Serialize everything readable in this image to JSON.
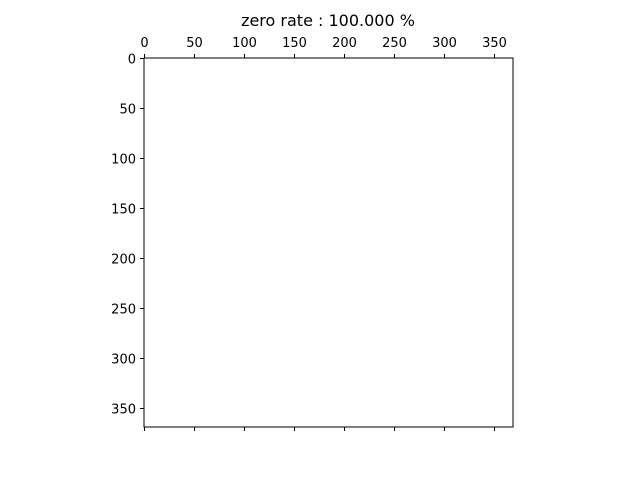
{
  "chart_data": {
    "type": "heatmap",
    "title": "zero rate : 100.000 %",
    "xlabel": "",
    "ylabel": "",
    "x_tick_labels": [
      "0",
      "50",
      "100",
      "150",
      "200",
      "250",
      "300",
      "350"
    ],
    "y_tick_labels": [
      "0",
      "50",
      "100",
      "150",
      "200",
      "250",
      "300",
      "350"
    ],
    "xlim": [
      0,
      369
    ],
    "ylim": [
      369,
      0
    ],
    "x_ticks_position": "top",
    "y_axis_inverted": true,
    "grid": false,
    "values": "all zero",
    "zero_rate_percent": 100.0,
    "colors": {
      "background": "#ffffff",
      "axes": "#000000"
    }
  }
}
